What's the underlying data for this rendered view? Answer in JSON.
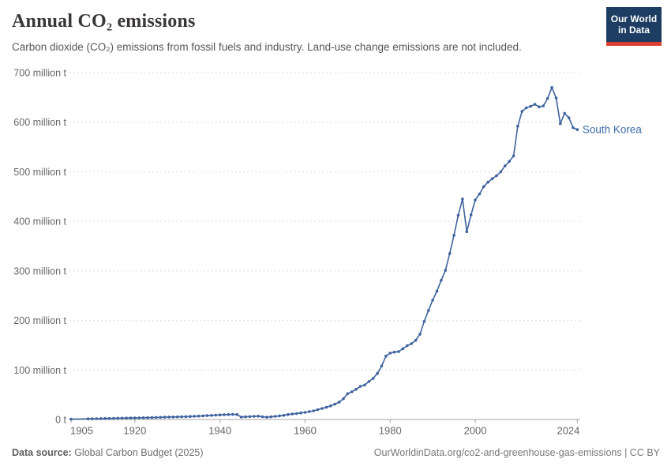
{
  "header": {
    "title": "Annual CO₂ emissions",
    "subtitle": "Carbon dioxide (CO₂) emissions from fossil fuels and industry. Land-use change emissions are not included."
  },
  "logo": {
    "line1": "Our World",
    "line2": "in Data"
  },
  "colors": {
    "line": "#3e639e",
    "entity_label": "#3c6da6",
    "grid": "#dcdcdc",
    "axis": "#a3a3a3",
    "tick_text": "#666666",
    "logo_bg": "#1d3d63",
    "logo_accent": "#dc3e32"
  },
  "chart_data": {
    "type": "line",
    "title": "Annual CO₂ emissions",
    "entity_label": "South Korea",
    "unit": "million t",
    "xlabel": "",
    "ylabel": "",
    "xlim": [
      1905,
      2024
    ],
    "ylim": [
      0,
      700
    ],
    "grid": "horizontal-dashed",
    "legend_position": "end-of-line-label",
    "xticks": [
      1905,
      1920,
      1940,
      1960,
      1980,
      2000,
      2024
    ],
    "yticks": [
      0,
      100,
      200,
      300,
      400,
      500,
      600,
      700
    ],
    "ytick_labels": [
      "0 t",
      "100 million t",
      "200 million t",
      "300 million t",
      "400 million t",
      "500 million t",
      "600 million t",
      "700 million t"
    ],
    "x": [
      1905,
      1909,
      1910,
      1911,
      1912,
      1913,
      1914,
      1915,
      1916,
      1917,
      1918,
      1919,
      1920,
      1921,
      1922,
      1923,
      1924,
      1925,
      1926,
      1927,
      1928,
      1929,
      1930,
      1931,
      1932,
      1933,
      1934,
      1935,
      1936,
      1937,
      1938,
      1939,
      1940,
      1941,
      1942,
      1943,
      1944,
      1945,
      1946,
      1947,
      1948,
      1949,
      1950,
      1951,
      1952,
      1953,
      1954,
      1955,
      1956,
      1957,
      1958,
      1959,
      1960,
      1961,
      1962,
      1963,
      1964,
      1965,
      1966,
      1967,
      1968,
      1969,
      1970,
      1971,
      1972,
      1973,
      1974,
      1975,
      1976,
      1977,
      1978,
      1979,
      1980,
      1981,
      1982,
      1983,
      1984,
      1985,
      1986,
      1987,
      1988,
      1989,
      1990,
      1991,
      1992,
      1993,
      1994,
      1995,
      1996,
      1997,
      1998,
      1999,
      2000,
      2001,
      2002,
      2003,
      2004,
      2005,
      2006,
      2007,
      2008,
      2009,
      2010,
      2011,
      2012,
      2013,
      2014,
      2015,
      2016,
      2017,
      2018,
      2019,
      2020,
      2021,
      2022,
      2023,
      2024
    ],
    "series": [
      {
        "name": "South Korea",
        "values": [
          0.6,
          1.2,
          1.4,
          1.6,
          1.8,
          2.0,
          2.1,
          2.3,
          2.5,
          2.7,
          2.9,
          3.0,
          3.2,
          3.3,
          3.5,
          3.7,
          3.9,
          4.1,
          4.3,
          4.6,
          4.9,
          5.1,
          5.3,
          5.5,
          5.8,
          6.1,
          6.5,
          6.9,
          7.3,
          7.8,
          8.3,
          8.8,
          9.3,
          9.7,
          10.1,
          10.4,
          10.0,
          4.9,
          5.4,
          5.9,
          6.4,
          6.7,
          5.6,
          4.6,
          5.4,
          6.3,
          7.4,
          8.5,
          10.0,
          11.2,
          12.0,
          13.2,
          14.4,
          16.0,
          17.5,
          20.0,
          22.3,
          24.5,
          27.5,
          31.0,
          35.0,
          42.0,
          52.0,
          56.0,
          61.0,
          67.0,
          69.5,
          76.5,
          83.0,
          93.0,
          108.0,
          128.0,
          134.0,
          136.0,
          137.0,
          143.0,
          149.0,
          153.0,
          160.0,
          172.0,
          198.0,
          220.0,
          241.0,
          259.0,
          281.0,
          301.0,
          335.0,
          372.0,
          412.0,
          445.0,
          379.0,
          413.0,
          443.0,
          455.0,
          470.0,
          479.0,
          486.0,
          492.0,
          500.0,
          512.0,
          521.0,
          532.0,
          592.0,
          622.0,
          629.0,
          632.0,
          636.0,
          631.0,
          633.0,
          648.0,
          670.0,
          649.0,
          597.0,
          618.0,
          609.0,
          589.0,
          585.0
        ]
      }
    ]
  },
  "footer": {
    "source_label": "Data source:",
    "source_value": " Global Carbon Budget (2025)",
    "credit": "OurWorldinData.org/co2-and-greenhouse-gas-emissions | CC BY"
  }
}
